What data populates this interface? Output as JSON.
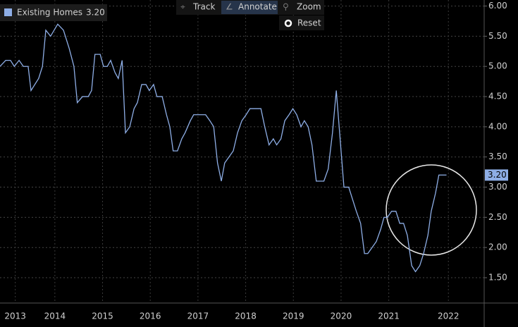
{
  "chart_data": {
    "type": "line",
    "x": [
      2013.35,
      2013.47,
      2013.57,
      2013.65,
      2013.75,
      2013.84,
      2013.94,
      2014.0,
      2014.16,
      2014.24,
      2014.31,
      2014.41,
      2014.56,
      2014.68,
      2014.8,
      2014.9,
      2014.97,
      2015.08,
      2015.2,
      2015.27,
      2015.34,
      2015.45,
      2015.52,
      2015.6,
      2015.67,
      2015.76,
      2015.83,
      2015.91,
      2015.98,
      2016.07,
      2016.16,
      2016.23,
      2016.32,
      2016.41,
      2016.48,
      2016.57,
      2016.64,
      2016.75,
      2016.84,
      2016.91,
      2016.98,
      2017.07,
      2017.16,
      2017.23,
      2017.34,
      2017.41,
      2017.56,
      2017.66,
      2017.75,
      2017.83,
      2017.91,
      2017.99,
      2018.06,
      2018.15,
      2018.24,
      2018.33,
      2018.42,
      2018.51,
      2018.59,
      2018.82,
      2018.9,
      2018.99,
      2019.08,
      2019.15,
      2019.24,
      2019.32,
      2019.41,
      2019.49,
      2019.57,
      2019.66,
      2019.73,
      2019.81,
      2019.89,
      2019.98,
      2020.14,
      2020.23,
      2020.32,
      2020.4,
      2020.47,
      2020.56,
      2020.66,
      2020.74,
      2020.82,
      2020.91,
      2020.99,
      2021.06,
      2021.15,
      2021.24,
      2021.33,
      2021.4,
      2021.47,
      2021.56,
      2021.65,
      2021.73,
      2021.81,
      2021.89,
      2021.98,
      2022.06,
      2022.15,
      2022.23,
      2022.32,
      2022.39,
      2022.48,
      2022.55,
      2022.71
    ],
    "series": [
      {
        "name": "Existing Homes",
        "color": "#8eaee6",
        "last_value_label": "3.20",
        "values": [
          5.0,
          5.1,
          5.1,
          5.0,
          5.1,
          5.0,
          5.0,
          4.6,
          4.8,
          5.0,
          5.6,
          5.5,
          5.7,
          5.6,
          5.3,
          5.0,
          4.4,
          4.5,
          4.5,
          4.6,
          5.2,
          5.2,
          5.0,
          5.0,
          5.1,
          4.9,
          4.8,
          5.1,
          3.9,
          4.0,
          4.3,
          4.4,
          4.7,
          4.7,
          4.6,
          4.7,
          4.5,
          4.5,
          4.2,
          4.0,
          3.6,
          3.6,
          3.8,
          3.9,
          4.1,
          4.2,
          4.2,
          4.2,
          4.1,
          4.0,
          3.4,
          3.1,
          3.4,
          3.5,
          3.6,
          3.9,
          4.1,
          4.2,
          4.3,
          4.3,
          4.0,
          3.7,
          3.8,
          3.7,
          3.8,
          4.1,
          4.2,
          4.3,
          4.2,
          4.0,
          4.1,
          4.0,
          3.7,
          3.1,
          3.1,
          3.3,
          3.9,
          4.6,
          3.9,
          3.0,
          3.0,
          2.8,
          2.6,
          2.4,
          1.9,
          1.9,
          2.0,
          2.1,
          2.3,
          2.5,
          2.5,
          2.6,
          2.6,
          2.4,
          2.4,
          2.2,
          1.7,
          1.6,
          1.7,
          1.9,
          2.2,
          2.6,
          2.9,
          3.2,
          3.2
        ]
      }
    ],
    "xlim": [
      2013.35,
      2023.5
    ],
    "xticks": [
      {
        "value": 2013.67,
        "label": "2013"
      },
      {
        "value": 2014.5,
        "label": "2014"
      },
      {
        "value": 2015.5,
        "label": "2015"
      },
      {
        "value": 2016.5,
        "label": "2016"
      },
      {
        "value": 2017.5,
        "label": "2017"
      },
      {
        "value": 2018.5,
        "label": "2018"
      },
      {
        "value": 2019.5,
        "label": "2019"
      },
      {
        "value": 2020.5,
        "label": "2020"
      },
      {
        "value": 2021.5,
        "label": "2021"
      },
      {
        "value": 2022.75,
        "label": "2022"
      }
    ],
    "ylim": [
      1.08,
      6.1
    ],
    "yticks": [
      {
        "value": 1.5,
        "label": "1.50"
      },
      {
        "value": 2,
        "label": "2.00"
      },
      {
        "value": 2.5,
        "label": "2.50"
      },
      {
        "value": 3,
        "label": "3.00"
      },
      {
        "value": 3.5,
        "label": "3.50"
      },
      {
        "value": 4,
        "label": "4.00"
      },
      {
        "value": 4.5,
        "label": "4.50"
      },
      {
        "value": 5,
        "label": "5.00"
      },
      {
        "value": 5.5,
        "label": "5.50"
      },
      {
        "value": 6,
        "label": "6.00"
      }
    ],
    "grid": true
  },
  "toolbar": {
    "track": "Track",
    "annotate": "Annotate",
    "zoom": "Zoom",
    "reset": "Reset"
  }
}
